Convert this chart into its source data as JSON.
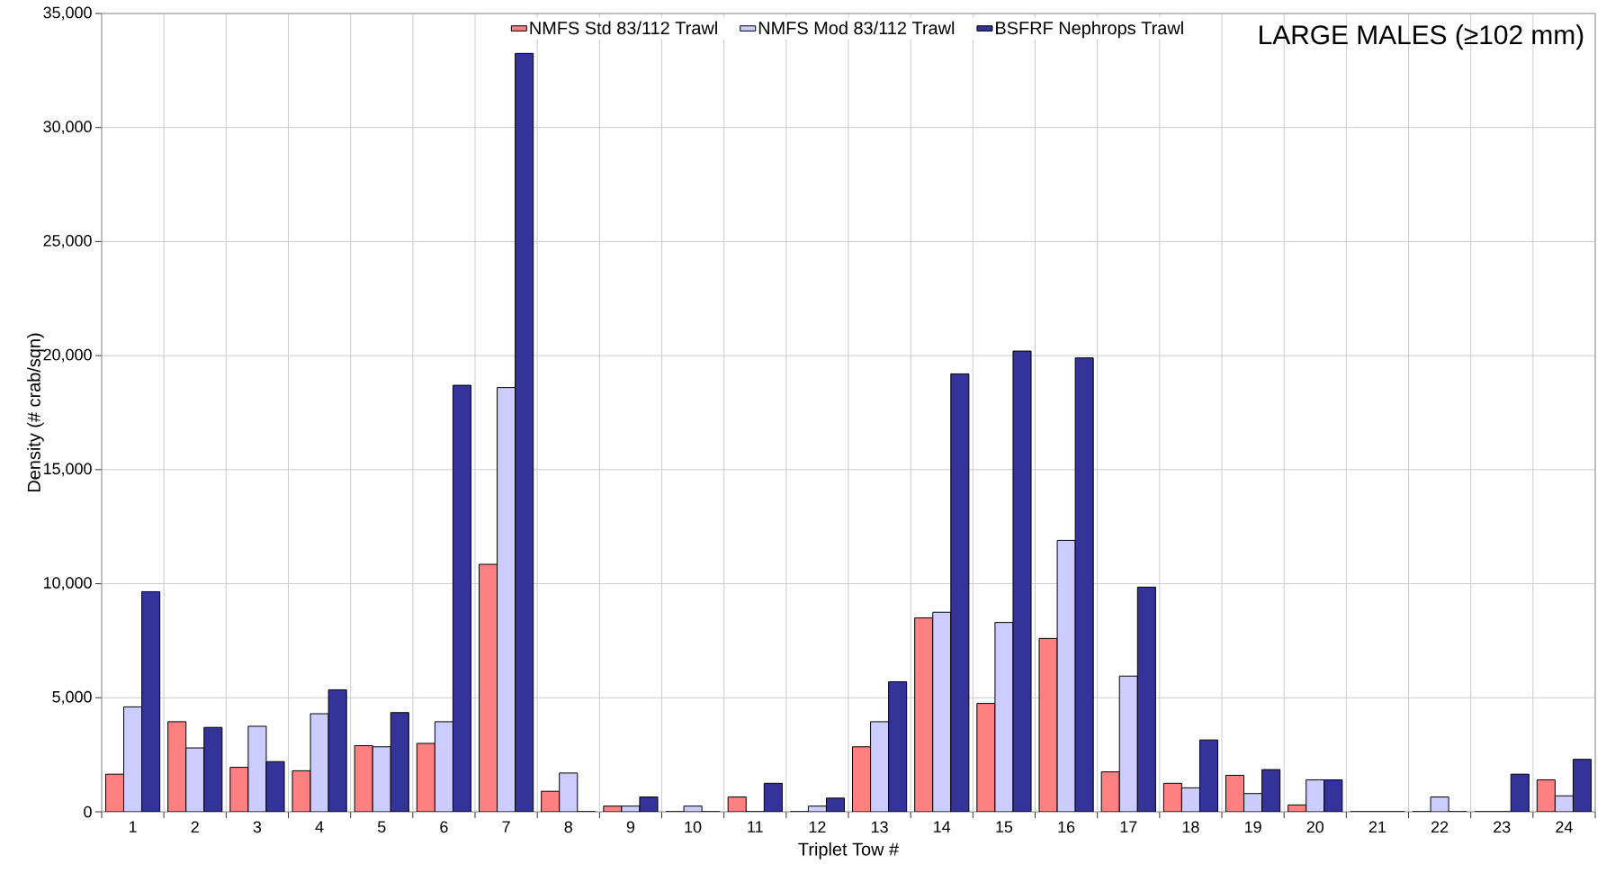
{
  "chart_data": {
    "type": "bar",
    "title": "LARGE MALES (≥102 mm)",
    "xlabel": "Triplet Tow #",
    "ylabel": "Density (# crab/sqn)",
    "categories": [
      "1",
      "2",
      "3",
      "4",
      "5",
      "6",
      "7",
      "8",
      "9",
      "10",
      "11",
      "12",
      "13",
      "14",
      "15",
      "16",
      "17",
      "18",
      "19",
      "20",
      "21",
      "22",
      "23",
      "24"
    ],
    "series": [
      {
        "name": "NMFS Std 83/112 Trawl",
        "color": "#ff8080",
        "values": [
          1650,
          3950,
          1950,
          1800,
          2900,
          3000,
          10850,
          900,
          250,
          0,
          650,
          0,
          2850,
          8500,
          4750,
          7600,
          1750,
          1250,
          1600,
          300,
          0,
          0,
          0,
          1400
        ]
      },
      {
        "name": "NMFS Mod 83/112 Trawl",
        "color": "#ccccff",
        "values": [
          4600,
          2800,
          3750,
          4300,
          2850,
          3950,
          18600,
          1700,
          250,
          250,
          0,
          250,
          3950,
          8750,
          8300,
          11900,
          5950,
          1050,
          800,
          1400,
          0,
          650,
          0,
          700
        ]
      },
      {
        "name": "BSFRF Nephrops Trawl",
        "color": "#333399",
        "values": [
          9650,
          3700,
          2200,
          5350,
          4350,
          18700,
          33250,
          0,
          650,
          0,
          1250,
          600,
          5700,
          19200,
          20200,
          19900,
          9850,
          3150,
          1850,
          1400,
          0,
          0,
          1650,
          2300
        ]
      }
    ],
    "ylim": [
      0,
      35000
    ],
    "yticks": [
      {
        "value": 0,
        "label": "0"
      },
      {
        "value": 5000,
        "label": "5,000"
      },
      {
        "value": 10000,
        "label": "10,000"
      },
      {
        "value": 15000,
        "label": "15,000"
      },
      {
        "value": 20000,
        "label": "20,000"
      },
      {
        "value": 25000,
        "label": "25,000"
      },
      {
        "value": 30000,
        "label": "30,000"
      },
      {
        "value": 35000,
        "label": "35,000"
      }
    ],
    "grid": true,
    "legend": "top"
  }
}
